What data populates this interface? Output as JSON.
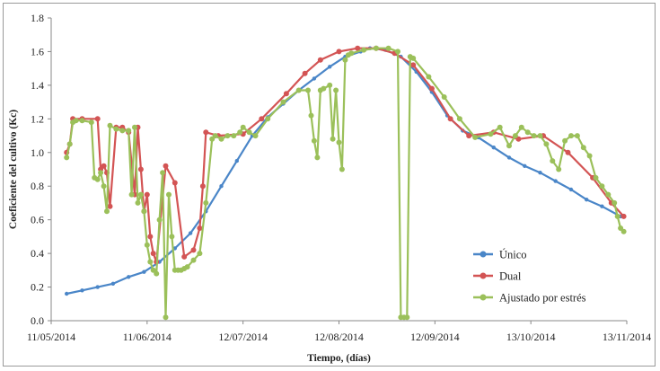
{
  "chart_data": {
    "type": "line",
    "xlabel": "Tiempo,  (días)",
    "ylabel": "Coeficiente del cultivo (Kc)",
    "ylim": [
      0.0,
      1.8
    ],
    "yticks": [
      "0.0",
      "0.2",
      "0.4",
      "0.6",
      "0.8",
      "1.0",
      "1.2",
      "1.4",
      "1.6",
      "1.8"
    ],
    "xlim": [
      "2014-05-11",
      "2014-11-13"
    ],
    "xticks": [
      "11/05/2014",
      "11/06/2014",
      "12/07/2014",
      "12/08/2014",
      "12/09/2014",
      "13/10/2014",
      "13/11/2014"
    ],
    "grid": false,
    "legend_position": "bottom-right",
    "series": [
      {
        "name": "Único",
        "color": "#4a86c8",
        "x": [
          "2014-05-16",
          "2014-05-21",
          "2014-05-26",
          "2014-05-31",
          "2014-06-05",
          "2014-06-10",
          "2014-06-15",
          "2014-06-20",
          "2014-06-25",
          "2014-06-30",
          "2014-07-05",
          "2014-07-10",
          "2014-07-15",
          "2014-07-20",
          "2014-07-25",
          "2014-07-30",
          "2014-08-04",
          "2014-08-09",
          "2014-08-14",
          "2014-08-19",
          "2014-08-22",
          "2014-08-27",
          "2014-09-01",
          "2014-09-06",
          "2014-09-11",
          "2014-09-16",
          "2014-09-21",
          "2014-09-26",
          "2014-10-01",
          "2014-10-06",
          "2014-10-11",
          "2014-10-16",
          "2014-10-21",
          "2014-10-26",
          "2014-10-31",
          "2014-11-05",
          "2014-11-11"
        ],
        "values": [
          0.16,
          0.18,
          0.2,
          0.22,
          0.26,
          0.29,
          0.35,
          0.43,
          0.52,
          0.65,
          0.8,
          0.95,
          1.1,
          1.21,
          1.29,
          1.37,
          1.44,
          1.51,
          1.57,
          1.6,
          1.62,
          1.61,
          1.57,
          1.48,
          1.36,
          1.22,
          1.13,
          1.09,
          1.03,
          0.97,
          0.92,
          0.88,
          0.83,
          0.78,
          0.72,
          0.68,
          0.62
        ]
      },
      {
        "name": "Dual",
        "color": "#d35454",
        "x": [
          "2014-05-16",
          "2014-05-17",
          "2014-05-18",
          "2014-05-21",
          "2014-05-26",
          "2014-05-27",
          "2014-05-28",
          "2014-05-29",
          "2014-05-30",
          "2014-06-01",
          "2014-06-03",
          "2014-06-05",
          "2014-06-07",
          "2014-06-08",
          "2014-06-09",
          "2014-06-10",
          "2014-06-11",
          "2014-06-12",
          "2014-06-13",
          "2014-06-14",
          "2014-06-17",
          "2014-06-20",
          "2014-06-23",
          "2014-06-26",
          "2014-06-28",
          "2014-06-29",
          "2014-06-30",
          "2014-07-04",
          "2014-07-12",
          "2014-07-18",
          "2014-07-26",
          "2014-08-01",
          "2014-08-06",
          "2014-08-12",
          "2014-08-18",
          "2014-08-24",
          "2014-08-30",
          "2014-09-05",
          "2014-09-11",
          "2014-09-17",
          "2014-09-23",
          "2014-10-01",
          "2014-10-09",
          "2014-10-17",
          "2014-10-25",
          "2014-11-02",
          "2014-11-08",
          "2014-11-12"
        ],
        "values": [
          1.0,
          1.05,
          1.2,
          1.2,
          1.2,
          0.9,
          0.92,
          0.88,
          0.68,
          1.15,
          1.15,
          1.12,
          0.75,
          1.15,
          0.9,
          0.65,
          0.75,
          0.5,
          0.4,
          0.35,
          0.92,
          0.82,
          0.38,
          0.42,
          0.55,
          0.8,
          1.12,
          1.1,
          1.11,
          1.2,
          1.35,
          1.47,
          1.55,
          1.6,
          1.62,
          1.62,
          1.59,
          1.52,
          1.38,
          1.2,
          1.1,
          1.12,
          1.08,
          1.1,
          1.0,
          0.85,
          0.7,
          0.62
        ]
      },
      {
        "name": "Ajustado por estrés",
        "color": "#9bc05a",
        "x": [
          "2014-05-16",
          "2014-05-17",
          "2014-05-18",
          "2014-05-19",
          "2014-05-21",
          "2014-05-24",
          "2014-05-25",
          "2014-05-26",
          "2014-05-27",
          "2014-05-28",
          "2014-05-29",
          "2014-05-30",
          "2014-06-01",
          "2014-06-03",
          "2014-06-05",
          "2014-06-06",
          "2014-06-07",
          "2014-06-08",
          "2014-06-09",
          "2014-06-10",
          "2014-06-11",
          "2014-06-12",
          "2014-06-13",
          "2014-06-14",
          "2014-06-15",
          "2014-06-16",
          "2014-06-17",
          "2014-06-18",
          "2014-06-19",
          "2014-06-20",
          "2014-06-21",
          "2014-06-22",
          "2014-06-23",
          "2014-06-24",
          "2014-06-26",
          "2014-06-28",
          "2014-06-30",
          "2014-07-02",
          "2014-07-03",
          "2014-07-05",
          "2014-07-07",
          "2014-07-09",
          "2014-07-11",
          "2014-07-12",
          "2014-07-14",
          "2014-07-16",
          "2014-07-20",
          "2014-07-25",
          "2014-07-30",
          "2014-08-02",
          "2014-08-03",
          "2014-08-04",
          "2014-08-05",
          "2014-08-06",
          "2014-08-07",
          "2014-08-09",
          "2014-08-10",
          "2014-08-11",
          "2014-08-12",
          "2014-08-13",
          "2014-08-14",
          "2014-08-15",
          "2014-08-16",
          "2014-08-20",
          "2014-08-24",
          "2014-08-28",
          "2014-08-31",
          "2014-09-01",
          "2014-09-02",
          "2014-09-03",
          "2014-09-04",
          "2014-09-05",
          "2014-09-10",
          "2014-09-15",
          "2014-09-20",
          "2014-09-25",
          "2014-09-30",
          "2014-10-03",
          "2014-10-06",
          "2014-10-08",
          "2014-10-10",
          "2014-10-12",
          "2014-10-14",
          "2014-10-16",
          "2014-10-18",
          "2014-10-20",
          "2014-10-22",
          "2014-10-24",
          "2014-10-26",
          "2014-10-28",
          "2014-10-30",
          "2014-11-01",
          "2014-11-03",
          "2014-11-05",
          "2014-11-07",
          "2014-11-09",
          "2014-11-10",
          "2014-11-11",
          "2014-11-12"
        ],
        "values": [
          0.97,
          1.05,
          1.18,
          1.19,
          1.19,
          1.18,
          0.85,
          0.84,
          0.88,
          0.8,
          0.65,
          1.16,
          1.14,
          1.13,
          1.13,
          0.75,
          1.15,
          0.7,
          0.75,
          0.65,
          0.45,
          0.35,
          0.3,
          0.28,
          0.6,
          0.88,
          0.02,
          0.75,
          0.5,
          0.3,
          0.3,
          0.3,
          0.31,
          0.32,
          0.36,
          0.4,
          0.7,
          1.08,
          1.1,
          1.08,
          1.1,
          1.1,
          1.12,
          1.15,
          1.12,
          1.1,
          1.2,
          1.3,
          1.37,
          1.37,
          1.22,
          1.07,
          0.97,
          1.37,
          1.38,
          1.4,
          1.08,
          1.37,
          1.06,
          0.9,
          1.55,
          1.58,
          1.59,
          1.61,
          1.62,
          1.62,
          1.6,
          0.02,
          0.02,
          0.02,
          1.57,
          1.56,
          1.45,
          1.33,
          1.2,
          1.09,
          1.11,
          1.15,
          1.04,
          1.1,
          1.15,
          1.12,
          1.1,
          1.1,
          1.05,
          0.95,
          0.9,
          1.07,
          1.1,
          1.1,
          1.03,
          0.98,
          0.85,
          0.8,
          0.75,
          0.7,
          0.62,
          0.55,
          0.53
        ]
      }
    ]
  }
}
